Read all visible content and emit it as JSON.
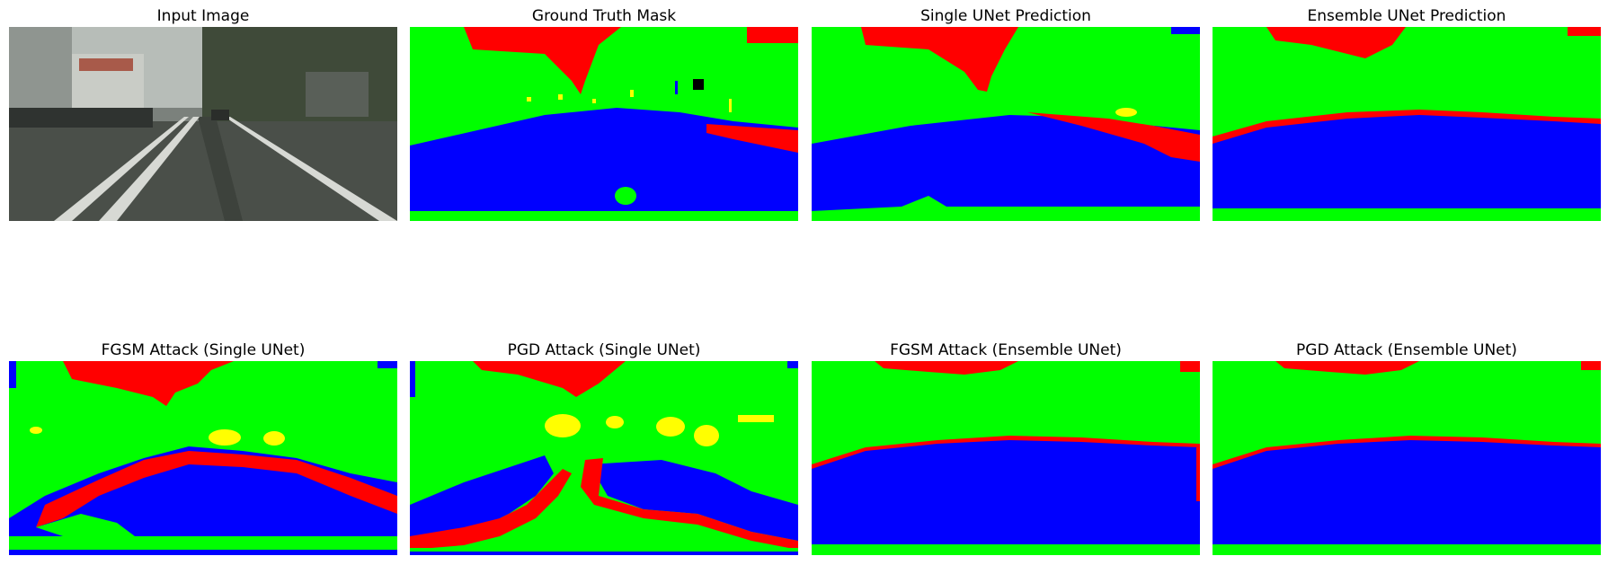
{
  "figure": {
    "row1": [
      {
        "title": "Input Image",
        "kind": "photo"
      },
      {
        "title": "Ground Truth Mask",
        "kind": "mask"
      },
      {
        "title": "Single UNet Prediction",
        "kind": "mask"
      },
      {
        "title": "Ensemble UNet Prediction",
        "kind": "mask"
      }
    ],
    "row2": [
      {
        "title": "FGSM Attack (Single UNet)",
        "kind": "mask"
      },
      {
        "title": "PGD Attack (Single UNet)",
        "kind": "mask"
      },
      {
        "title": "FGSM Attack (Ensemble UNet)",
        "kind": "mask"
      },
      {
        "title": "PGD Attack (Ensemble UNet)",
        "kind": "mask"
      }
    ]
  },
  "palette": {
    "red": "#ff0000",
    "green": "#00ff00",
    "blue": "#0000ff",
    "yellow": "#ffff00",
    "black": "#000000",
    "road": "#4a4f49",
    "sky": "#b7bdb8"
  }
}
